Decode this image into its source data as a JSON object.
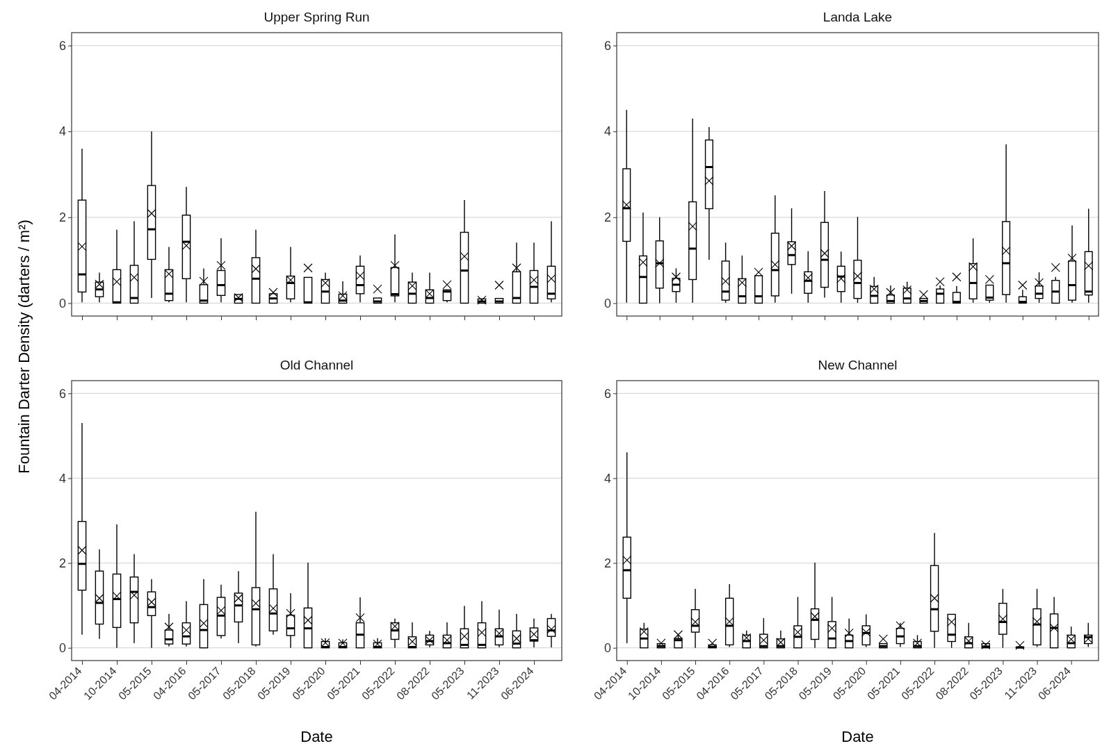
{
  "chart_data": [
    {
      "type": "box",
      "title": "Upper Spring Run",
      "ylabel": "Fountain Darter Density (darters / m²)",
      "tick_labels": "y",
      "grid": "y",
      "ylim": [
        -0.3,
        6.3
      ],
      "yticks": [
        0,
        2,
        4,
        6
      ],
      "categories": [
        null,
        null,
        null,
        null,
        null,
        null,
        null,
        null,
        null,
        null,
        null,
        null,
        null,
        null,
        null,
        null,
        null,
        null,
        null,
        null,
        null,
        null,
        null,
        null,
        null,
        null,
        null,
        null
      ],
      "boxes": [
        {
          "low": 0.02,
          "q1": 0.26,
          "median": 0.67,
          "q3": 2.4,
          "high": 3.6,
          "mean": 1.32
        },
        {
          "low": 0.02,
          "q1": 0.15,
          "median": 0.32,
          "q3": 0.49,
          "high": 0.71,
          "mean": 0.44
        },
        {
          "low": 0,
          "q1": 0,
          "median": 0.02,
          "q3": 0.78,
          "high": 1.71,
          "mean": 0.5
        },
        {
          "low": 0,
          "q1": 0,
          "median": 0.12,
          "q3": 0.88,
          "high": 1.91,
          "mean": 0.6
        },
        {
          "low": 0.12,
          "q1": 1.02,
          "median": 1.72,
          "q3": 2.74,
          "high": 4.0,
          "mean": 2.09
        },
        {
          "low": 0.02,
          "q1": 0.06,
          "median": 0.22,
          "q3": 0.78,
          "high": 1.31,
          "mean": 0.68
        },
        {
          "low": 0.02,
          "q1": 0.57,
          "median": 1.43,
          "q3": 2.05,
          "high": 2.71,
          "mean": 1.34
        },
        {
          "low": 0,
          "q1": 0,
          "median": 0.06,
          "q3": 0.43,
          "high": 0.81,
          "mean": 0.51
        },
        {
          "low": 0.02,
          "q1": 0.18,
          "median": 0.42,
          "q3": 0.76,
          "high": 1.51,
          "mean": 0.88
        },
        {
          "low": 0,
          "q1": 0,
          "median": 0.1,
          "q3": 0.2,
          "high": 0.2,
          "mean": 0.13
        },
        {
          "low": 0,
          "q1": 0,
          "median": 0.57,
          "q3": 1.06,
          "high": 1.71,
          "mean": 0.8
        },
        {
          "low": 0,
          "q1": 0,
          "median": 0.11,
          "q3": 0.22,
          "high": 0.22,
          "mean": 0.25
        },
        {
          "low": 0.02,
          "q1": 0.1,
          "median": 0.47,
          "q3": 0.63,
          "high": 1.31,
          "mean": 0.54
        },
        {
          "low": 0,
          "q1": 0,
          "median": 0.02,
          "q3": 0.6,
          "high": 0.6,
          "mean": 0.82
        },
        {
          "low": 0,
          "q1": 0,
          "median": 0.27,
          "q3": 0.55,
          "high": 0.71,
          "mean": 0.47
        },
        {
          "low": 0,
          "q1": 0,
          "median": 0.06,
          "q3": 0.21,
          "high": 0.51,
          "mean": 0.17
        },
        {
          "low": 0.02,
          "q1": 0.22,
          "median": 0.42,
          "q3": 0.86,
          "high": 1.11,
          "mean": 0.64
        },
        {
          "low": 0,
          "q1": 0,
          "median": 0.04,
          "q3": 0.12,
          "high": 0.12,
          "mean": 0.33
        },
        {
          "low": 0.02,
          "q1": 0.17,
          "median": 0.21,
          "q3": 0.83,
          "high": 1.6,
          "mean": 0.88
        },
        {
          "low": 0,
          "q1": 0,
          "median": 0.22,
          "q3": 0.49,
          "high": 0.71,
          "mean": 0.4
        },
        {
          "low": 0,
          "q1": 0,
          "median": 0.12,
          "q3": 0.31,
          "high": 0.71,
          "mean": 0.22
        },
        {
          "low": 0.02,
          "q1": 0.06,
          "median": 0.27,
          "q3": 0.31,
          "high": 0.31,
          "mean": 0.43
        },
        {
          "low": 0,
          "q1": 0,
          "median": 0.76,
          "q3": 1.65,
          "high": 2.4,
          "mean": 1.09
        },
        {
          "low": 0,
          "q1": 0,
          "median": 0.04,
          "q3": 0.1,
          "high": 0.1,
          "mean": 0.07
        },
        {
          "low": 0,
          "q1": 0,
          "median": 0.04,
          "q3": 0.11,
          "high": 0.11,
          "mean": 0.42
        },
        {
          "low": 0,
          "q1": 0,
          "median": 0.12,
          "q3": 0.73,
          "high": 1.41,
          "mean": 0.82
        },
        {
          "low": 0,
          "q1": 0,
          "median": 0.38,
          "q3": 0.76,
          "high": 1.41,
          "mean": 0.54
        },
        {
          "low": 0.02,
          "q1": 0.1,
          "median": 0.22,
          "q3": 0.86,
          "high": 1.91,
          "mean": 0.57
        }
      ]
    },
    {
      "type": "box",
      "title": "Landa Lake",
      "tick_labels": "y",
      "grid": "y",
      "ylim": [
        -0.3,
        6.3
      ],
      "yticks": [
        0,
        2,
        4,
        6
      ],
      "categories": [
        null,
        null,
        null,
        null,
        null,
        null,
        null,
        null,
        null,
        null,
        null,
        null,
        null,
        null,
        null,
        null,
        null,
        null,
        null,
        null,
        null,
        null,
        null,
        null,
        null,
        null,
        null,
        null,
        null
      ],
      "boxes": [
        {
          "low": 0.01,
          "q1": 1.44,
          "median": 2.21,
          "q3": 3.13,
          "high": 4.5,
          "mean": 2.29
        },
        {
          "low": 0,
          "q1": 0,
          "median": 0.61,
          "q3": 1.1,
          "high": 2.11,
          "mean": 0.95
        },
        {
          "low": 0,
          "q1": 0.35,
          "median": 0.93,
          "q3": 1.45,
          "high": 2.0,
          "mean": 0.93
        },
        {
          "low": 0.01,
          "q1": 0.27,
          "median": 0.43,
          "q3": 0.58,
          "high": 0.81,
          "mean": 0.61
        },
        {
          "low": 0.01,
          "q1": 0.55,
          "median": 1.27,
          "q3": 2.36,
          "high": 4.3,
          "mean": 1.79
        },
        {
          "low": 1.01,
          "q1": 2.2,
          "median": 3.17,
          "q3": 3.8,
          "high": 4.1,
          "mean": 2.85
        },
        {
          "low": 0.01,
          "q1": 0.07,
          "median": 0.27,
          "q3": 0.98,
          "high": 1.41,
          "mean": 0.51
        },
        {
          "low": 0,
          "q1": 0,
          "median": 0.16,
          "q3": 0.57,
          "high": 1.11,
          "mean": 0.48
        },
        {
          "low": 0,
          "q1": 0,
          "median": 0.16,
          "q3": 0.64,
          "high": 0.64,
          "mean": 0.72
        },
        {
          "low": 0.01,
          "q1": 0.17,
          "median": 0.77,
          "q3": 1.63,
          "high": 2.51,
          "mean": 0.9
        },
        {
          "low": 0.22,
          "q1": 0.9,
          "median": 1.12,
          "q3": 1.43,
          "high": 2.21,
          "mean": 1.33
        },
        {
          "low": 0.01,
          "q1": 0.23,
          "median": 0.52,
          "q3": 0.73,
          "high": 1.21,
          "mean": 0.59
        },
        {
          "low": 0.13,
          "q1": 0.37,
          "median": 1.01,
          "q3": 1.88,
          "high": 2.61,
          "mean": 1.16
        },
        {
          "low": 0.01,
          "q1": 0.27,
          "median": 0.62,
          "q3": 0.86,
          "high": 1.2,
          "mean": 0.57
        },
        {
          "low": 0.01,
          "q1": 0.11,
          "median": 0.47,
          "q3": 1.0,
          "high": 2.01,
          "mean": 0.63
        },
        {
          "low": 0,
          "q1": 0,
          "median": 0.17,
          "q3": 0.39,
          "high": 0.61,
          "mean": 0.33
        },
        {
          "low": 0,
          "q1": 0,
          "median": 0.05,
          "q3": 0.19,
          "high": 0.41,
          "mean": 0.25
        },
        {
          "low": 0,
          "q1": 0,
          "median": 0.11,
          "q3": 0.35,
          "high": 0.5,
          "mean": 0.31
        },
        {
          "low": 0,
          "q1": 0,
          "median": 0.05,
          "q3": 0.11,
          "high": 0.11,
          "mean": 0.2
        },
        {
          "low": 0,
          "q1": 0,
          "median": 0.22,
          "q3": 0.33,
          "high": 0.41,
          "mean": 0.5
        },
        {
          "low": 0,
          "q1": 0,
          "median": 0.03,
          "q3": 0.25,
          "high": 0.4,
          "mean": 0.61
        },
        {
          "low": 0.01,
          "q1": 0.1,
          "median": 0.47,
          "q3": 0.92,
          "high": 1.51,
          "mean": 0.85
        },
        {
          "low": 0.01,
          "q1": 0.07,
          "median": 0.13,
          "q3": 0.42,
          "high": 0.42,
          "mean": 0.55
        },
        {
          "low": 0.01,
          "q1": 0.2,
          "median": 0.93,
          "q3": 1.9,
          "high": 3.7,
          "mean": 1.22
        },
        {
          "low": 0,
          "q1": 0,
          "median": 0.03,
          "q3": 0.15,
          "high": 0.31,
          "mean": 0.42
        },
        {
          "low": 0.01,
          "q1": 0.11,
          "median": 0.22,
          "q3": 0.4,
          "high": 0.72,
          "mean": 0.48
        },
        {
          "low": 0,
          "q1": 0,
          "median": 0.27,
          "q3": 0.53,
          "high": 0.61,
          "mean": 0.83
        },
        {
          "low": 0.01,
          "q1": 0.07,
          "median": 0.42,
          "q3": 0.98,
          "high": 1.81,
          "mean": 1.05
        },
        {
          "low": 0.01,
          "q1": 0.19,
          "median": 0.27,
          "q3": 1.2,
          "high": 2.2,
          "mean": 0.87
        }
      ]
    },
    {
      "type": "box",
      "title": "Old Channel",
      "xlabel": "Date",
      "grid": "y",
      "ylim": [
        -0.3,
        6.3
      ],
      "yticks": [
        0,
        2,
        4,
        6
      ],
      "categories": [
        "04-2014",
        null,
        "10-2014",
        null,
        "05-2015",
        null,
        "04-2016",
        null,
        "05-2017",
        null,
        "05-2018",
        null,
        "05-2019",
        null,
        "05-2020",
        null,
        "05-2021",
        null,
        "05-2022",
        null,
        "08-2022",
        null,
        "05-2023",
        null,
        "11-2023",
        null,
        "06-2024",
        null
      ],
      "boxes": [
        {
          "low": 0.31,
          "q1": 1.36,
          "median": 1.98,
          "q3": 2.98,
          "high": 5.3,
          "mean": 2.3
        },
        {
          "low": 0.21,
          "q1": 0.56,
          "median": 1.06,
          "q3": 1.81,
          "high": 2.32,
          "mean": 1.17
        },
        {
          "low": 0,
          "q1": 0.48,
          "median": 1.15,
          "q3": 1.74,
          "high": 2.91,
          "mean": 1.22
        },
        {
          "low": 0.11,
          "q1": 0.59,
          "median": 1.32,
          "q3": 1.67,
          "high": 2.21,
          "mean": 1.24
        },
        {
          "low": 0,
          "q1": 0.76,
          "median": 0.96,
          "q3": 1.32,
          "high": 1.62,
          "mean": 1.08
        },
        {
          "low": 0.03,
          "q1": 0.09,
          "median": 0.2,
          "q3": 0.42,
          "high": 0.8,
          "mean": 0.49
        },
        {
          "low": 0.03,
          "q1": 0.09,
          "median": 0.27,
          "q3": 0.59,
          "high": 1.1,
          "mean": 0.42
        },
        {
          "low": 0,
          "q1": 0,
          "median": 0.42,
          "q3": 1.02,
          "high": 1.62,
          "mean": 0.58
        },
        {
          "low": 0.22,
          "q1": 0.29,
          "median": 0.76,
          "q3": 1.19,
          "high": 1.49,
          "mean": 0.88
        },
        {
          "low": 0.11,
          "q1": 0.61,
          "median": 1.0,
          "q3": 1.29,
          "high": 1.81,
          "mean": 1.17
        },
        {
          "low": 0.03,
          "q1": 0.07,
          "median": 0.91,
          "q3": 1.42,
          "high": 3.21,
          "mean": 1.05
        },
        {
          "low": 0.31,
          "q1": 0.4,
          "median": 0.81,
          "q3": 1.39,
          "high": 2.21,
          "mean": 0.93
        },
        {
          "low": 0,
          "q1": 0.29,
          "median": 0.46,
          "q3": 0.77,
          "high": 1.29,
          "mean": 0.81
        },
        {
          "low": 0,
          "q1": 0,
          "median": 0.46,
          "q3": 0.94,
          "high": 2.01,
          "mean": 0.65
        },
        {
          "low": 0,
          "q1": 0,
          "median": 0.02,
          "q3": 0.15,
          "high": 0.23,
          "mean": 0.12
        },
        {
          "low": 0,
          "q1": 0,
          "median": 0.02,
          "q3": 0.12,
          "high": 0.2,
          "mean": 0.11
        },
        {
          "low": 0,
          "q1": 0,
          "median": 0.31,
          "q3": 0.59,
          "high": 1.19,
          "mean": 0.71
        },
        {
          "low": 0,
          "q1": 0,
          "median": 0.02,
          "q3": 0.12,
          "high": 0.23,
          "mean": 0.09
        },
        {
          "low": 0,
          "q1": 0.2,
          "median": 0.41,
          "q3": 0.59,
          "high": 0.69,
          "mean": 0.51
        },
        {
          "low": 0,
          "q1": 0,
          "median": 0.02,
          "q3": 0.26,
          "high": 0.6,
          "mean": 0.15
        },
        {
          "low": 0.01,
          "q1": 0.07,
          "median": 0.16,
          "q3": 0.3,
          "high": 0.4,
          "mean": 0.18
        },
        {
          "low": 0,
          "q1": 0,
          "median": 0.11,
          "q3": 0.3,
          "high": 0.6,
          "mean": 0.18
        },
        {
          "low": 0,
          "q1": 0,
          "median": 0.07,
          "q3": 0.45,
          "high": 0.99,
          "mean": 0.27
        },
        {
          "low": 0,
          "q1": 0,
          "median": 0.07,
          "q3": 0.59,
          "high": 1.1,
          "mean": 0.36
        },
        {
          "low": 0.01,
          "q1": 0.07,
          "median": 0.27,
          "q3": 0.45,
          "high": 0.9,
          "mean": 0.34
        },
        {
          "low": 0,
          "q1": 0,
          "median": 0.1,
          "q3": 0.4,
          "high": 0.8,
          "mean": 0.22
        },
        {
          "low": 0.01,
          "q1": 0.16,
          "median": 0.18,
          "q3": 0.47,
          "high": 0.69,
          "mean": 0.32
        },
        {
          "low": 0.01,
          "q1": 0.27,
          "median": 0.41,
          "q3": 0.69,
          "high": 0.8,
          "mean": 0.44
        }
      ]
    },
    {
      "type": "box",
      "title": "New Channel",
      "xlabel": "Date",
      "grid": "y",
      "ylim": [
        -0.3,
        6.3
      ],
      "yticks": [
        0,
        2,
        4,
        6
      ],
      "categories": [
        "04-2014",
        null,
        "10-2014",
        null,
        "05-2015",
        null,
        "04-2016",
        null,
        "05-2017",
        null,
        "05-2018",
        null,
        "05-2019",
        null,
        "05-2020",
        null,
        "05-2021",
        null,
        "05-2022",
        null,
        "08-2022",
        null,
        "05-2023",
        null,
        "11-2023",
        null,
        "06-2024",
        null
      ],
      "boxes": [
        {
          "low": 0.11,
          "q1": 1.17,
          "median": 1.83,
          "q3": 2.61,
          "high": 4.61,
          "mean": 2.07
        },
        {
          "low": 0,
          "q1": 0,
          "median": 0.22,
          "q3": 0.44,
          "high": 0.59,
          "mean": 0.38
        },
        {
          "low": 0,
          "q1": 0,
          "median": 0.04,
          "q3": 0.1,
          "high": 0.1,
          "mean": 0.11
        },
        {
          "low": 0,
          "q1": 0,
          "median": 0.18,
          "q3": 0.22,
          "high": 0.3,
          "mean": 0.31
        },
        {
          "low": 0,
          "q1": 0.37,
          "median": 0.52,
          "q3": 0.9,
          "high": 1.39,
          "mean": 0.61
        },
        {
          "low": 0,
          "q1": 0,
          "median": 0.02,
          "q3": 0.07,
          "high": 0.07,
          "mean": 0.11
        },
        {
          "low": 0.02,
          "q1": 0.07,
          "median": 0.52,
          "q3": 1.17,
          "high": 1.5,
          "mean": 0.62
        },
        {
          "low": 0,
          "q1": 0,
          "median": 0.16,
          "q3": 0.3,
          "high": 0.41,
          "mean": 0.24
        },
        {
          "low": 0,
          "q1": 0,
          "median": 0.04,
          "q3": 0.32,
          "high": 0.7,
          "mean": 0.18
        },
        {
          "low": 0,
          "q1": 0,
          "median": 0.04,
          "q3": 0.21,
          "high": 0.41,
          "mean": 0.13
        },
        {
          "low": 0,
          "q1": 0,
          "median": 0.26,
          "q3": 0.52,
          "high": 1.2,
          "mean": 0.37
        },
        {
          "low": 0,
          "q1": 0.2,
          "median": 0.66,
          "q3": 0.92,
          "high": 2.01,
          "mean": 0.74
        },
        {
          "low": 0,
          "q1": 0,
          "median": 0.22,
          "q3": 0.62,
          "high": 1.2,
          "mean": 0.46
        },
        {
          "low": 0,
          "q1": 0,
          "median": 0.16,
          "q3": 0.3,
          "high": 0.69,
          "mean": 0.35
        },
        {
          "low": 0.02,
          "q1": 0.07,
          "median": 0.35,
          "q3": 0.52,
          "high": 0.79,
          "mean": 0.37
        },
        {
          "low": 0,
          "q1": 0,
          "median": 0.04,
          "q3": 0.1,
          "high": 0.1,
          "mean": 0.21
        },
        {
          "low": 0.02,
          "q1": 0.1,
          "median": 0.27,
          "q3": 0.46,
          "high": 0.59,
          "mean": 0.52
        },
        {
          "low": 0,
          "q1": 0,
          "median": 0.04,
          "q3": 0.15,
          "high": 0.3,
          "mean": 0.11
        },
        {
          "low": 0,
          "q1": 0.39,
          "median": 0.91,
          "q3": 1.94,
          "high": 2.71,
          "mean": 1.17
        },
        {
          "low": 0,
          "q1": 0.15,
          "median": 0.31,
          "q3": 0.79,
          "high": 0.79,
          "mean": 0.61
        },
        {
          "low": 0,
          "q1": 0,
          "median": 0.11,
          "q3": 0.26,
          "high": 0.59,
          "mean": 0.16
        },
        {
          "low": 0,
          "q1": 0,
          "median": 0.03,
          "q3": 0.1,
          "high": 0.1,
          "mean": 0.07
        },
        {
          "low": 0,
          "q1": 0.32,
          "median": 0.61,
          "q3": 1.05,
          "high": 1.39,
          "mean": 0.68
        },
        {
          "low": 0,
          "q1": 0,
          "median": 0.01,
          "q3": 0.02,
          "high": 0.02,
          "mean": 0.06
        },
        {
          "low": 0.02,
          "q1": 0.07,
          "median": 0.55,
          "q3": 0.92,
          "high": 1.39,
          "mean": 0.62
        },
        {
          "low": 0,
          "q1": 0,
          "median": 0.47,
          "q3": 0.8,
          "high": 1.2,
          "mean": 0.47
        },
        {
          "low": 0,
          "q1": 0,
          "median": 0.11,
          "q3": 0.3,
          "high": 0.5,
          "mean": 0.2
        },
        {
          "low": 0.02,
          "q1": 0.1,
          "median": 0.25,
          "q3": 0.3,
          "high": 0.59,
          "mean": 0.21
        }
      ]
    }
  ]
}
